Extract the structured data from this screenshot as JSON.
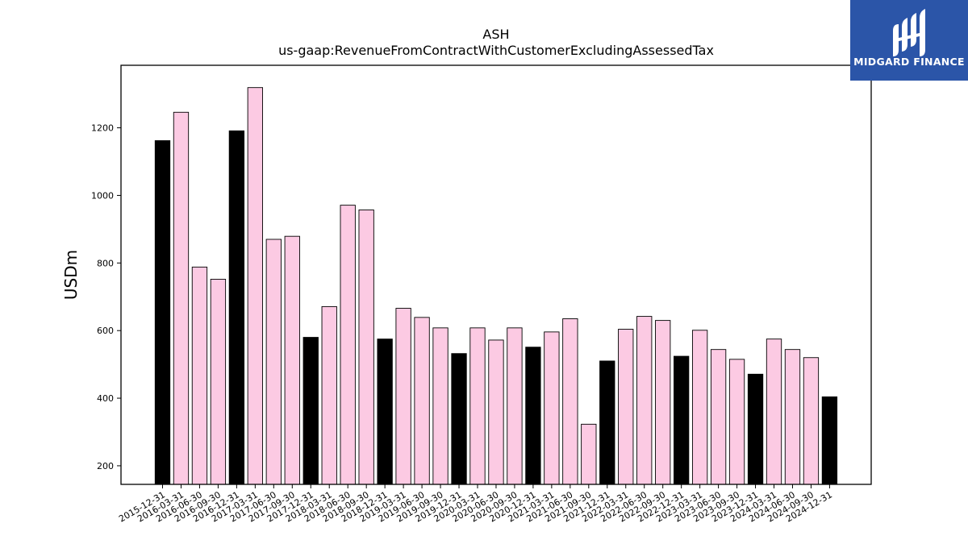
{
  "chart_data": {
    "type": "bar",
    "title": "ASH",
    "subtitle": "us-gaap:RevenueFromContractWithCustomerExcludingAssessedTax",
    "xlabel": "",
    "ylabel": "USDm",
    "ylim": [
      145,
      1385
    ],
    "yticks": [
      200,
      400,
      600,
      800,
      1000,
      1200
    ],
    "grid": false,
    "colors": {
      "annual": "#000000",
      "quarterly": "#fccae3",
      "edge": "#000000"
    },
    "categories": [
      "2015-12-31",
      "2016-03-31",
      "2016-06-30",
      "2016-09-30",
      "2016-12-31",
      "2017-03-31",
      "2017-06-30",
      "2017-09-30",
      "2017-12-31",
      "2018-03-31",
      "2018-06-30",
      "2018-09-30",
      "2018-12-31",
      "2019-03-31",
      "2019-06-30",
      "2019-09-30",
      "2019-12-31",
      "2020-03-31",
      "2020-06-30",
      "2020-09-30",
      "2020-12-31",
      "2021-03-31",
      "2021-06-30",
      "2021-09-30",
      "2021-12-31",
      "2022-03-31",
      "2022-06-30",
      "2022-09-30",
      "2022-12-31",
      "2023-03-31",
      "2023-06-30",
      "2023-09-30",
      "2023-12-31",
      "2024-03-31",
      "2024-06-30",
      "2024-09-30",
      "2024-12-31"
    ],
    "values": [
      1162,
      1246,
      788,
      752,
      1191,
      1319,
      870,
      879,
      580,
      671,
      971,
      957,
      575,
      666,
      639,
      608,
      532,
      608,
      572,
      608,
      551,
      596,
      635,
      323,
      510,
      604,
      642,
      630,
      524,
      601,
      544,
      515,
      471,
      575,
      544,
      520,
      404
    ],
    "highlight": [
      true,
      false,
      false,
      false,
      true,
      false,
      false,
      false,
      true,
      false,
      false,
      false,
      true,
      false,
      false,
      false,
      true,
      false,
      false,
      false,
      true,
      false,
      false,
      false,
      true,
      false,
      false,
      false,
      true,
      false,
      false,
      false,
      true,
      false,
      false,
      false,
      true
    ]
  },
  "logo": {
    "text": "MIDGARD FINANCE",
    "background": "#2b55a8"
  }
}
